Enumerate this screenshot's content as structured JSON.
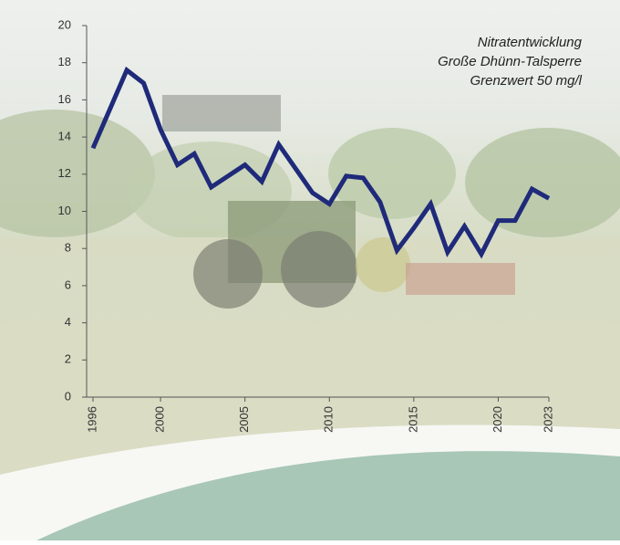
{
  "chart_data": {
    "type": "line",
    "annotation": [
      "Nitratentwicklung",
      "Große Dhünn-Talsperre",
      "Grenzwert 50 mg/l"
    ],
    "x": [
      1996,
      1997,
      1998,
      1999,
      2000,
      2001,
      2002,
      2003,
      2004,
      2005,
      2006,
      2007,
      2008,
      2009,
      2010,
      2011,
      2012,
      2013,
      2014,
      2015,
      2016,
      2017,
      2018,
      2019,
      2020,
      2021,
      2022,
      2023
    ],
    "series": [
      {
        "color": "#1f2a7a",
        "values": [
          13.4,
          15.5,
          17.6,
          16.9,
          14.4,
          12.5,
          13.1,
          11.3,
          11.9,
          12.5,
          11.6,
          13.6,
          12.3,
          11.0,
          10.4,
          11.9,
          11.8,
          10.5,
          7.9,
          9.1,
          10.4,
          7.8,
          9.2,
          7.7,
          9.5,
          9.5,
          11.2,
          10.7
        ]
      }
    ],
    "xlim": [
      1996,
      2023
    ],
    "xticks": [
      1996,
      2000,
      2005,
      2010,
      2015,
      2020,
      2023
    ],
    "ylim": [
      0,
      20
    ],
    "yticks": [
      0,
      2,
      4,
      6,
      8,
      10,
      12,
      14,
      16,
      18,
      20
    ]
  }
}
